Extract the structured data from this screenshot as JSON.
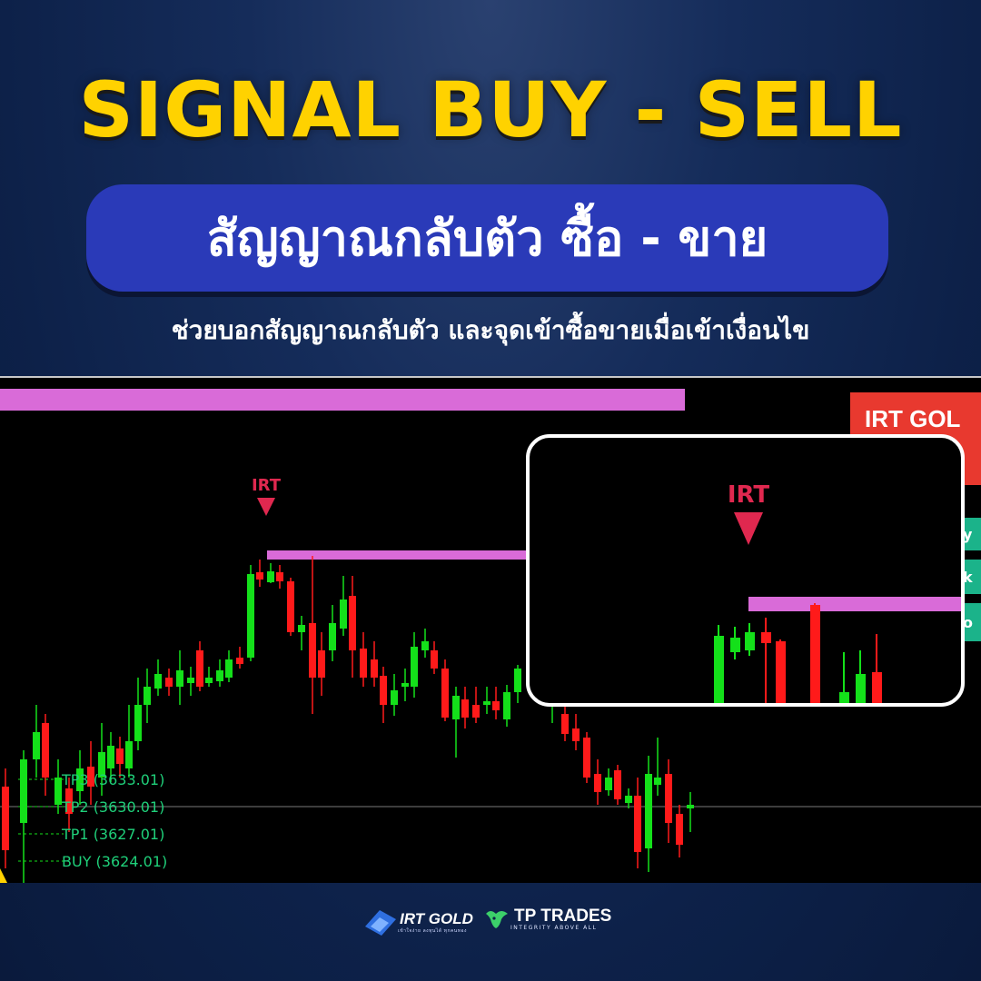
{
  "headline": "SIGNAL BUY - SELL",
  "thai_title": "สัญญาณกลับตัว ซื้อ - ขาย",
  "thai_subtitle": "ช่วยบอกสัญญาณกลับตัว และจุดเข้าซื้อขายเมื่อเข้าเงื่อนไข",
  "chart": {
    "signal_label": "IRT",
    "zoom_signal_label": "IRT",
    "panel_title": "IRT GOL",
    "panel_partial_letters": [
      "y",
      "k",
      "o"
    ],
    "levels": [
      {
        "label": "TP3 (3633.01)"
      },
      {
        "label": "TP2 (3630.01)"
      },
      {
        "label": "TP1 (3627.01)"
      },
      {
        "label": "BUY (3624.01)"
      }
    ],
    "colors": {
      "bull": "#14e01a",
      "bear": "#ff1a1a",
      "zone": "#d96bd8",
      "panel": "#e8392f",
      "panel_rows": "#1bb38a"
    }
  },
  "footer": {
    "irt_brand": "IRT GOLD",
    "irt_tagline": "เข้าใจง่าย ลงทุนได้ ทุกคนทอง",
    "tp_brand": "TP TRADES",
    "tp_tagline": "INTEGRITY ABOVE ALL"
  }
}
